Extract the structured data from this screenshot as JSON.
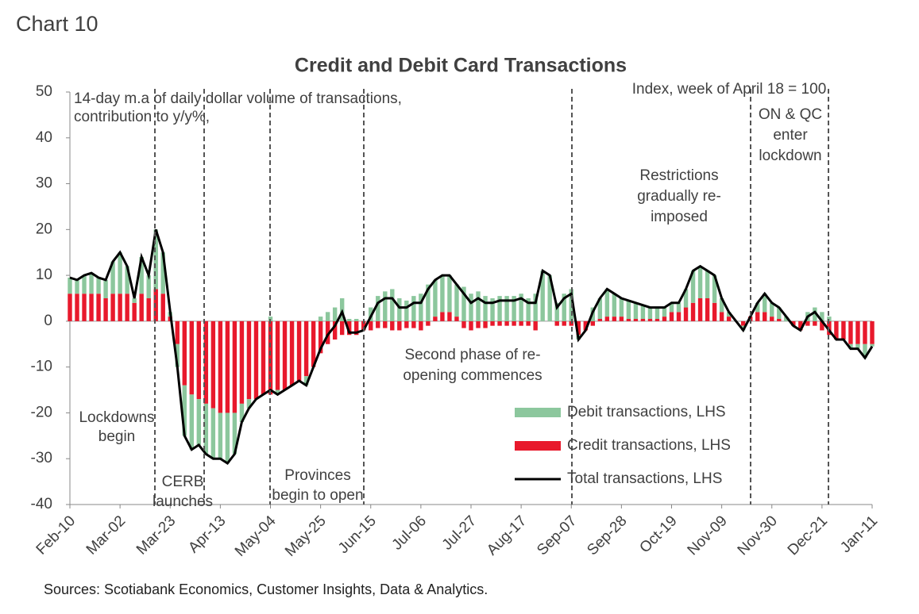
{
  "chart_label": "Chart 10",
  "source": "Sources: Scotiabank Economics, Customer Insights, Data & Analytics.",
  "chart_data": {
    "type": "stacked-bar-line",
    "title": "Credit and Debit Card Transactions",
    "categories": [
      "Feb-10",
      null,
      null,
      null,
      null,
      null,
      null,
      "Mar-02",
      null,
      null,
      null,
      null,
      null,
      null,
      "Mar-23",
      null,
      null,
      null,
      null,
      null,
      null,
      "Apr-13",
      null,
      null,
      null,
      null,
      null,
      null,
      "May-04",
      null,
      null,
      null,
      null,
      null,
      null,
      "May-25",
      null,
      null,
      null,
      null,
      null,
      null,
      "Jun-15",
      null,
      null,
      null,
      null,
      null,
      null,
      "Jul-06",
      null,
      null,
      null,
      null,
      null,
      null,
      "Jul-27",
      null,
      null,
      null,
      null,
      null,
      null,
      "Aug-17",
      null,
      null,
      null,
      null,
      null,
      null,
      "Sep-07",
      null,
      null,
      null,
      null,
      null,
      null,
      "Sep-28",
      null,
      null,
      null,
      null,
      null,
      null,
      "Oct-19",
      null,
      null,
      null,
      null,
      null,
      null,
      "Nov-09",
      null,
      null,
      null,
      null,
      null,
      null,
      "Nov-30",
      null,
      null,
      null,
      null,
      null,
      null,
      "Dec-21",
      null,
      null,
      null,
      null,
      null,
      null,
      "Jan-11"
    ],
    "series": [
      {
        "name": "Debit transactions, LHS",
        "color": "#8cc79d",
        "kind": "bar",
        "values": [
          3.5,
          3,
          4,
          4.5,
          3.5,
          4,
          7,
          9,
          6,
          1,
          8,
          5,
          13,
          9,
          1,
          -5,
          -11,
          -12,
          -10,
          -11,
          -11,
          -10,
          -11,
          -9,
          -4,
          -2,
          0,
          0,
          1,
          -1,
          0,
          0,
          0,
          -2,
          0,
          1,
          2,
          3,
          5,
          0.5,
          0.5,
          0,
          3,
          5.5,
          6.5,
          7,
          5,
          4.5,
          5.5,
          6,
          8,
          8,
          8,
          8,
          7,
          7.5,
          6,
          6.5,
          5.5,
          5,
          5.5,
          5.5,
          5.5,
          6,
          5,
          6,
          11,
          10,
          4,
          6,
          7,
          -1,
          0,
          3,
          4.5,
          6,
          5,
          4,
          4,
          3.5,
          3,
          2.5,
          2.5,
          2,
          2,
          2,
          4,
          7,
          7,
          6,
          6,
          3,
          1,
          0,
          -1,
          0,
          2,
          4,
          3,
          2.5,
          1,
          0,
          0,
          2,
          3,
          2,
          1,
          0,
          0,
          -1,
          -1,
          -3,
          -0.5
        ]
      },
      {
        "name": "Credit transactions, LHS",
        "color": "#e8192c",
        "kind": "bar",
        "values": [
          6,
          6,
          6,
          6,
          6,
          5,
          6,
          6,
          6,
          4,
          6,
          5,
          7,
          6,
          1,
          -5,
          -14,
          -16,
          -17,
          -18,
          -19,
          -20,
          -20,
          -20,
          -18,
          -17,
          -17,
          -16,
          -16,
          -15,
          -15,
          -14,
          -13,
          -12,
          -10,
          -7,
          -5,
          -4,
          -3,
          -3,
          -3,
          -2,
          -2,
          -1.5,
          -1.5,
          -2,
          -2,
          -1.5,
          -1.5,
          -2,
          -1,
          1,
          2,
          2,
          1,
          -1.5,
          -2,
          -1.5,
          -1.5,
          -1,
          -1,
          -1,
          -1,
          -1,
          -1,
          -2,
          0,
          0,
          -1,
          -1,
          -1,
          -3,
          -2,
          -1,
          0.5,
          1,
          1,
          1,
          0.5,
          0.5,
          0.5,
          0.5,
          0.5,
          1,
          2,
          2,
          3,
          4,
          5,
          5,
          4,
          2,
          1,
          0,
          -1,
          1,
          2,
          2,
          1,
          0.5,
          0,
          -1,
          -2,
          -1,
          -1,
          -2,
          -3,
          -4,
          -4,
          -5,
          -5,
          -5,
          -5
        ]
      },
      {
        "name": "Total transactions, LHS",
        "color": "#000000",
        "kind": "line",
        "values": [
          9.5,
          9,
          10,
          10.5,
          9.5,
          9,
          13,
          15,
          12,
          5,
          14,
          10,
          20,
          15,
          2,
          -10,
          -25,
          -28,
          -27,
          -29,
          -30,
          -30,
          -31,
          -29,
          -22,
          -19,
          -17,
          -16,
          -15,
          -16,
          -15,
          -14,
          -13,
          -14,
          -10,
          -6,
          -3,
          -1,
          2,
          -2.5,
          -2.5,
          -2,
          1,
          4,
          5,
          5,
          3,
          3,
          4,
          4,
          7,
          9,
          10,
          10,
          8,
          6,
          4,
          5,
          4,
          4,
          4.5,
          4.5,
          4.5,
          5,
          4,
          4,
          11,
          10,
          3,
          5,
          6,
          -4,
          -2,
          2,
          5,
          7,
          6,
          5,
          4.5,
          4,
          3.5,
          3,
          3,
          3,
          4,
          4,
          7,
          11,
          12,
          11,
          10,
          5,
          2,
          0,
          -2,
          1,
          4,
          6,
          4,
          3,
          1,
          -1,
          -2,
          1,
          2,
          0,
          -2,
          -4,
          -4,
          -6,
          -6,
          -8,
          -5.5
        ]
      }
    ],
    "ylim": [
      -40,
      50
    ],
    "yticks": [
      -40,
      -30,
      -20,
      -10,
      0,
      10,
      20,
      30,
      40,
      50
    ],
    "annotations": [
      {
        "lines": [
          "14-day m.a of daily dollar volume of transactions,",
          "contribution to y/y%,"
        ]
      },
      {
        "lines": [
          "Index, week of April 18 = 100"
        ]
      },
      {
        "lines": [
          "ON & QC",
          "enter",
          "lockdown"
        ]
      },
      {
        "lines": [
          "Restrictions",
          "gradually re-",
          "imposed"
        ]
      },
      {
        "lines": [
          "Second phase of re-",
          "opening commences"
        ]
      },
      {
        "lines": [
          "Provinces",
          "begin to open"
        ]
      },
      {
        "lines": [
          "CERB",
          "launches"
        ]
      },
      {
        "lines": [
          "Lockdowns",
          "begin"
        ]
      }
    ]
  }
}
